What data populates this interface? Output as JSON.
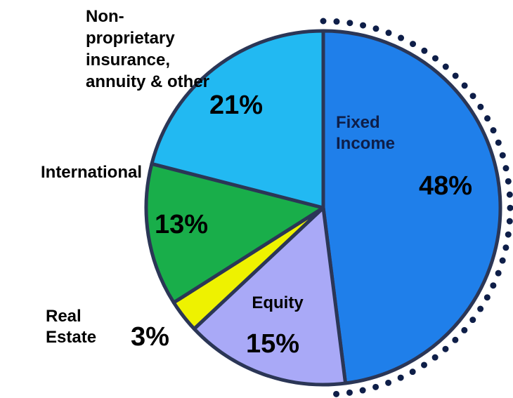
{
  "chart_data": {
    "type": "pie",
    "categories": [
      "Fixed Income",
      "Equity",
      "Real Estate",
      "International",
      "Non-proprietary insurance, annuity & other"
    ],
    "values": [
      48,
      15,
      3,
      13,
      21
    ],
    "value_labels": [
      "48%",
      "15%",
      "3%",
      "13%",
      "21%"
    ],
    "colors": [
      "#1f7fea",
      "#a9a9f7",
      "#eef200",
      "#19ae4a",
      "#22b9f2"
    ]
  }
}
